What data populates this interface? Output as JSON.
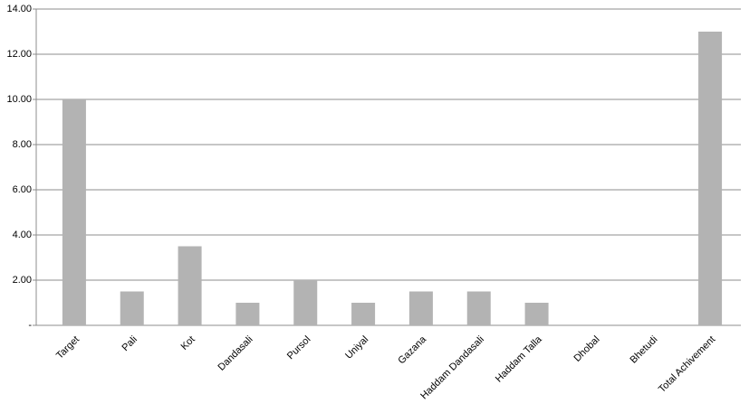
{
  "chart_data": {
    "type": "bar",
    "categories": [
      "Target",
      "Pali",
      "Kot",
      "Dandasali",
      "Pursol",
      "Uniyal",
      "Gazana",
      "Haddam Dandasali",
      "Haddam Talla",
      "Dhobal",
      "Bhetudi",
      "Total Achivement"
    ],
    "values": [
      10,
      1.5,
      3.5,
      1,
      2,
      1,
      1.5,
      1.5,
      1,
      0,
      0,
      13
    ],
    "color": "#b3b3b3",
    "ylim": [
      0,
      14
    ],
    "yticks": [
      {
        "value": 0,
        "label": "-"
      },
      {
        "value": 2,
        "label": "2.00"
      },
      {
        "value": 4,
        "label": "4.00"
      },
      {
        "value": 6,
        "label": "6.00"
      },
      {
        "value": 8,
        "label": "8.00"
      },
      {
        "value": 10,
        "label": "10.00"
      },
      {
        "value": 12,
        "label": "12.00"
      },
      {
        "value": 14,
        "label": "14.00"
      }
    ],
    "grid": true
  }
}
